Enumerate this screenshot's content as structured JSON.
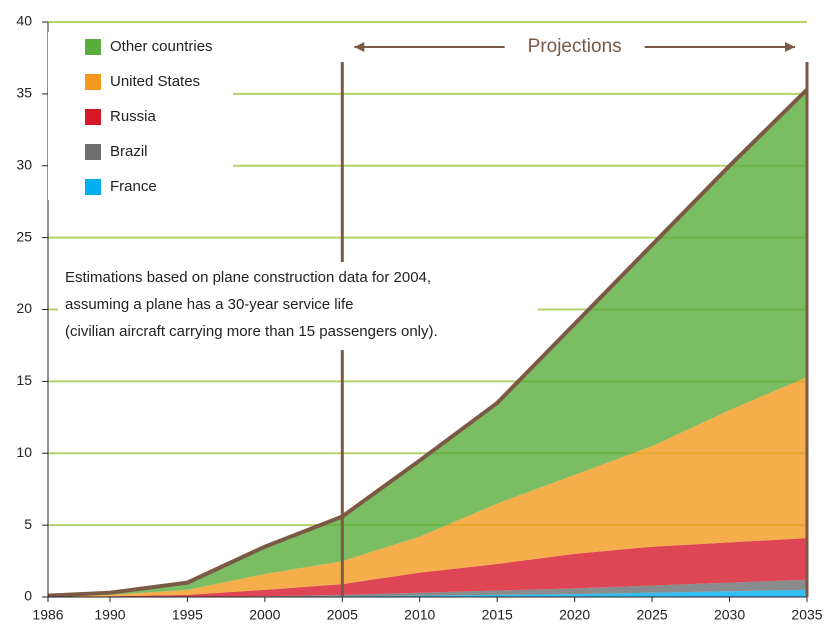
{
  "chart_data": {
    "type": "stacked-area",
    "x": [
      1986,
      1990,
      1995,
      2000,
      2005,
      2010,
      2015,
      2020,
      2025,
      2030,
      2035
    ],
    "series": [
      {
        "name": "France",
        "color": "#00aeef",
        "values": [
          0,
          0,
          0,
          0,
          0.05,
          0.1,
          0.15,
          0.2,
          0.3,
          0.4,
          0.5
        ]
      },
      {
        "name": "Brazil",
        "color": "#6d6e70",
        "values": [
          0,
          0,
          0,
          0.05,
          0.1,
          0.2,
          0.3,
          0.4,
          0.5,
          0.6,
          0.7
        ]
      },
      {
        "name": "Russia",
        "color": "#d7182a",
        "values": [
          0,
          0.05,
          0.15,
          0.45,
          0.75,
          1.4,
          1.85,
          2.4,
          2.7,
          2.8,
          2.9
        ]
      },
      {
        "name": "United States",
        "color": "#f39a1e",
        "values": [
          0.05,
          0.1,
          0.35,
          1.1,
          1.6,
          2.5,
          4.2,
          5.5,
          7.0,
          9.2,
          11.2
        ]
      },
      {
        "name": "Other countries",
        "color": "#5aad3c",
        "values": [
          0.05,
          0.15,
          0.5,
          1.9,
          3.1,
          5.3,
          7.0,
          10.5,
          14.0,
          17.0,
          20.0
        ]
      }
    ],
    "xlim": [
      1986,
      2035
    ],
    "ylim": [
      0,
      40
    ],
    "xticks": [
      1986,
      1990,
      1995,
      2000,
      2005,
      2010,
      2015,
      2020,
      2025,
      2030,
      2035
    ],
    "yticks": [
      0,
      5,
      10,
      15,
      20,
      25,
      30,
      35,
      40
    ],
    "grid": true,
    "grid_color": "#b5d36b",
    "outline_color": "#7b5a45",
    "projections_label": "Projections",
    "projections_range": [
      2005,
      2035
    ],
    "note": [
      "Estimations based on plane construction data for 2004,",
      "assuming a plane has a 30-year service life",
      "(civilian aircraft carrying more than 15 passengers only)."
    ]
  }
}
